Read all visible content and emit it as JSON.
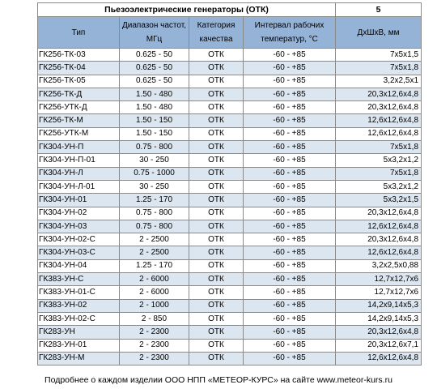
{
  "title": "Пьезоэлектрические генераторы (ОТК)",
  "page_number": "5",
  "headers": {
    "type": "Тип",
    "freq": "Диапазон частот, МГц",
    "category": "Категория качества",
    "temp": "Интервал рабочих температур, °С",
    "dims": "ДхШхВ, мм"
  },
  "rows": [
    {
      "type": "ГК256-ТК-03",
      "freq": "0.625 - 50",
      "category": "ОТК",
      "temp": "-60 - +85",
      "dims": "7х5х1,5"
    },
    {
      "type": "ГК256-ТК-04",
      "freq": "0.625 - 50",
      "category": "ОТК",
      "temp": "-60 - +85",
      "dims": "7х5х1,8"
    },
    {
      "type": "ГК256-ТК-05",
      "freq": "0.625 - 50",
      "category": "ОТК",
      "temp": "-60 - +85",
      "dims": "3,2х2,5х1"
    },
    {
      "type": "ГК256-ТК-Д",
      "freq": "1.50 - 480",
      "category": "ОТК",
      "temp": "-60 - +85",
      "dims": "20,3х12,6х4,8"
    },
    {
      "type": "ГК256-УТК-Д",
      "freq": "1.50 - 480",
      "category": "ОТК",
      "temp": "-60 - +85",
      "dims": "20,3х12,6х4,8"
    },
    {
      "type": "ГК256-ТК-М",
      "freq": "1.50 - 150",
      "category": "ОТК",
      "temp": "-60 - +85",
      "dims": "12,6х12,6х4,8"
    },
    {
      "type": "ГК256-УТК-М",
      "freq": "1.50 - 150",
      "category": "ОТК",
      "temp": "-60 - +85",
      "dims": "12,6х12,6х4,8"
    },
    {
      "type": "ГК304-УН-П",
      "freq": "0.75 - 800",
      "category": "ОТК",
      "temp": "-60 - +85",
      "dims": "7х5х1,8"
    },
    {
      "type": "ГК304-УН-П-01",
      "freq": "30 - 250",
      "category": "ОТК",
      "temp": "-60 - +85",
      "dims": "5х3,2х1,2"
    },
    {
      "type": "ГК304-УН-Л",
      "freq": "0.75 - 1000",
      "category": "ОТК",
      "temp": "-60 - +85",
      "dims": "7х5х1,8"
    },
    {
      "type": "ГК304-УН-Л-01",
      "freq": "30 - 250",
      "category": "ОТК",
      "temp": "-60 - +85",
      "dims": "5х3,2х1,2"
    },
    {
      "type": "ГК304-УН-01",
      "freq": "1.25 - 170",
      "category": "ОТК",
      "temp": "-60 - +85",
      "dims": "5х3,2х1,5"
    },
    {
      "type": "ГК304-УН-02",
      "freq": "0.75 - 800",
      "category": "ОТК",
      "temp": "-60 - +85",
      "dims": "20,3х12,6х4,8"
    },
    {
      "type": "ГК304-УН-03",
      "freq": "0.75 - 800",
      "category": "ОТК",
      "temp": "-60 - +85",
      "dims": "12,6х12,6х4,8"
    },
    {
      "type": "ГК304-УН-02-С",
      "freq": "2 - 2500",
      "category": "ОТК",
      "temp": "-60 - +85",
      "dims": "20,3х12,6х4,8"
    },
    {
      "type": "ГК304-УН-03-С",
      "freq": "2 - 2500",
      "category": "ОТК",
      "temp": "-60 - +85",
      "dims": "12,6х12,6х4,8"
    },
    {
      "type": "ГК304-УН-04",
      "freq": "1.25 - 170",
      "category": "ОТК",
      "temp": "-60 - +85",
      "dims": "3,2х2,5х0,88"
    },
    {
      "type": "ГК383-УН-С",
      "freq": "2 - 6000",
      "category": "ОТК",
      "temp": "-60 - +85",
      "dims": "12,7х12,7х6"
    },
    {
      "type": "ГК383-УН-01-С",
      "freq": "2 - 6000",
      "category": "ОТК",
      "temp": "-60 - +85",
      "dims": "12,7х12,7х6"
    },
    {
      "type": "ГК383-УН-02",
      "freq": "2 - 1000",
      "category": "ОТК",
      "temp": "-60 - +85",
      "dims": "14,2х9,14х5,3"
    },
    {
      "type": "ГК383-УН-02-С",
      "freq": "2 - 850",
      "category": "ОТК",
      "temp": "-60 - +85",
      "dims": "14,2х9,14х5,3"
    },
    {
      "type": "ГК283-УН",
      "freq": "2 - 2300",
      "category": "ОТК",
      "temp": "-60 - +85",
      "dims": "20,3х12,6х4,8"
    },
    {
      "type": "ГК283-УН-01",
      "freq": "2 - 2300",
      "category": "ОТК",
      "temp": "-60 - +85",
      "dims": "20,3х12,6х7,1"
    },
    {
      "type": "ГК283-УН-М",
      "freq": "2 - 2300",
      "category": "ОТК",
      "temp": "-60 - +85",
      "dims": "12,6х12,6х4,8"
    }
  ],
  "footer": "Подробнее о каждом изделии ООО НПП «МЕТЕОР-КУРС» на сайте www.meteor-kurs.ru",
  "colors": {
    "header_bg": "#95b3d7",
    "alt_row_bg": "#dce6f1",
    "border": "#8a8a8a"
  }
}
